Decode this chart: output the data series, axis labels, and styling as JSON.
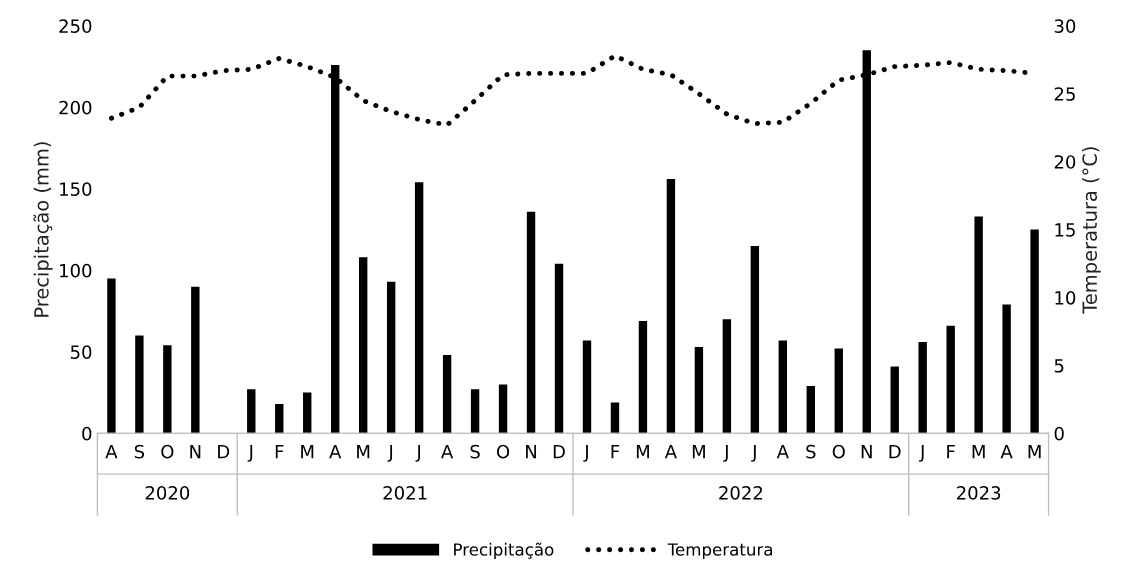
{
  "chart_data": {
    "type": "bar",
    "categories": [
      "A",
      "S",
      "O",
      "N",
      "D",
      "J",
      "F",
      "M",
      "A",
      "M",
      "J",
      "J",
      "A",
      "S",
      "O",
      "N",
      "D",
      "J",
      "F",
      "M",
      "A",
      "M",
      "J",
      "J",
      "A",
      "S",
      "O",
      "N",
      "D",
      "J",
      "F",
      "M",
      "A",
      "M"
    ],
    "ylabel": "Precipitação (mm)",
    "y2label": "Temperatura (°C)",
    "ylim": [
      0,
      250
    ],
    "yticks": [
      0,
      50,
      100,
      150,
      200,
      250
    ],
    "y2lim": [
      0,
      30
    ],
    "y2ticks": [
      0,
      5,
      10,
      15,
      20,
      25,
      30
    ],
    "series": [
      {
        "name": "Precipitação",
        "color": "#000000",
        "values": [
          95,
          60,
          54,
          90,
          null,
          27,
          18,
          25,
          226,
          108,
          93,
          154,
          48,
          27,
          30,
          136,
          104,
          57,
          19,
          69,
          156,
          53,
          70,
          115,
          57,
          29,
          52,
          235,
          41,
          56,
          66,
          133,
          79,
          125
        ]
      },
      {
        "name": "Temperatura",
        "type": "line",
        "axis": "y2",
        "color": "#000000",
        "line_style": "dotted",
        "values": [
          23.2,
          24.0,
          26.3,
          26.3,
          26.7,
          26.8,
          27.6,
          27.0,
          26.2,
          24.5,
          23.7,
          23.1,
          22.7,
          24.5,
          26.4,
          26.5,
          26.5,
          26.5,
          27.8,
          26.8,
          26.4,
          25.0,
          23.5,
          22.8,
          22.9,
          24.3,
          26.0,
          26.4,
          27.0,
          27.1,
          27.3,
          26.8,
          26.7,
          26.5
        ]
      }
    ],
    "annotations": [
      "2020",
      "2021",
      "2022",
      "2023"
    ],
    "grid": false,
    "legend": "bottom"
  }
}
